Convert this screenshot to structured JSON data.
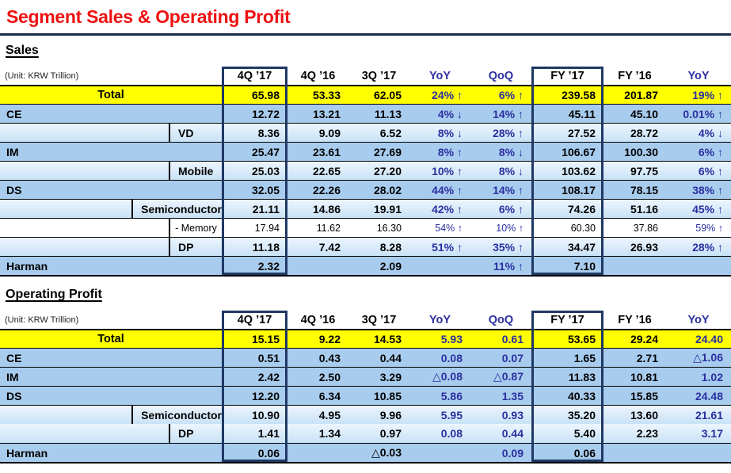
{
  "title": "Segment Sales & Operating Profit",
  "colors": {
    "title_red": "#EE1111",
    "rule_navy": "#1A2A4A",
    "box_border_navy": "#1F3864",
    "delta_blue": "#2B2FA0",
    "total_yellow": "#FFFF00",
    "main_row_blue": "#A8CCEE",
    "sub_row_blue": "#C9E2F6",
    "memory_row_white": "#FFFFFF"
  },
  "tables": [
    {
      "heading": "Sales",
      "unit_label": "(Unit: KRW Trillion)",
      "columns": [
        "4Q ’17",
        "4Q ’16",
        "3Q ’17",
        "YoY",
        "QoQ",
        "FY ’17",
        "FY ’16",
        "YoY"
      ],
      "delta_columns": [
        3,
        4,
        7
      ],
      "boxed_value_columns": [
        0,
        5
      ],
      "rows": [
        {
          "label": "Total",
          "type": "total",
          "values": [
            "65.98",
            "53.33",
            "62.05",
            "24% ↑",
            "6% ↑",
            "239.58",
            "201.87",
            "19% ↑"
          ]
        },
        {
          "label": "CE",
          "type": "main",
          "values": [
            "12.72",
            "13.21",
            "11.13",
            "4% ↓",
            "14% ↑",
            "45.11",
            "45.10",
            "0.01% ↑"
          ]
        },
        {
          "label": "VD",
          "type": "sub",
          "values": [
            "8.36",
            "9.09",
            "6.52",
            "8% ↓",
            "28% ↑",
            "27.52",
            "28.72",
            "4% ↓"
          ]
        },
        {
          "label": "IM",
          "type": "main",
          "values": [
            "25.47",
            "23.61",
            "27.69",
            "8% ↑",
            "8% ↓",
            "106.67",
            "100.30",
            "6% ↑"
          ]
        },
        {
          "label": "Mobile",
          "type": "sub",
          "values": [
            "25.03",
            "22.65",
            "27.20",
            "10% ↑",
            "8% ↓",
            "103.62",
            "97.75",
            "6% ↑"
          ]
        },
        {
          "label": "DS",
          "type": "main",
          "values": [
            "32.05",
            "22.26",
            "28.02",
            "44% ↑",
            "14% ↑",
            "108.17",
            "78.15",
            "38% ↑"
          ]
        },
        {
          "label": "Semiconductor",
          "type": "sub",
          "values": [
            "21.11",
            "14.86",
            "19.91",
            "42% ↑",
            "6% ↑",
            "74.26",
            "51.16",
            "45% ↑"
          ]
        },
        {
          "label": "- Memory",
          "type": "sub2",
          "values": [
            "17.94",
            "11.62",
            "16.30",
            "54% ↑",
            "10% ↑",
            "60.30",
            "37.86",
            "59% ↑"
          ]
        },
        {
          "label": "DP",
          "type": "sub",
          "values": [
            "11.18",
            "7.42",
            "8.28",
            "51% ↑",
            "35% ↑",
            "34.47",
            "26.93",
            "28% ↑"
          ]
        },
        {
          "label": "Harman",
          "type": "main",
          "values": [
            "2.32",
            "",
            "2.09",
            "",
            "11% ↑",
            "7.10",
            "",
            ""
          ]
        }
      ]
    },
    {
      "heading": "Operating Profit",
      "unit_label": "(Unit: KRW Trillion)",
      "columns": [
        "4Q ’17",
        "4Q ’16",
        "3Q ’17",
        "YoY",
        "QoQ",
        "FY ’17",
        "FY ’16",
        "YoY"
      ],
      "delta_columns": [
        3,
        4,
        7
      ],
      "boxed_value_columns": [
        0,
        5
      ],
      "rows": [
        {
          "label": "Total",
          "type": "total",
          "values": [
            "15.15",
            "9.22",
            "14.53",
            "5.93",
            "0.61",
            "53.65",
            "29.24",
            "24.40"
          ]
        },
        {
          "label": "CE",
          "type": "main",
          "values": [
            "0.51",
            "0.43",
            "0.44",
            "0.08",
            "0.07",
            "1.65",
            "2.71",
            "△1.06"
          ]
        },
        {
          "label": "IM",
          "type": "main",
          "values": [
            "2.42",
            "2.50",
            "3.29",
            "△0.08",
            "△0.87",
            "11.83",
            "10.81",
            "1.02"
          ]
        },
        {
          "label": "DS",
          "type": "main",
          "values": [
            "12.20",
            "6.34",
            "10.85",
            "5.86",
            "1.35",
            "40.33",
            "15.85",
            "24.48"
          ]
        },
        {
          "label": "Semiconductor",
          "type": "sub",
          "values": [
            "10.90",
            "4.95",
            "9.96",
            "5.95",
            "0.93",
            "35.20",
            "13.60",
            "21.61"
          ]
        },
        {
          "label": "DP",
          "type": "sub",
          "no_separator_above": true,
          "values": [
            "1.41",
            "1.34",
            "0.97",
            "0.08",
            "0.44",
            "5.40",
            "2.23",
            "3.17"
          ]
        },
        {
          "label": "Harman",
          "type": "main",
          "values": [
            "0.06",
            "",
            "△0.03",
            "",
            "0.09",
            "0.06",
            "",
            ""
          ]
        }
      ]
    }
  ]
}
